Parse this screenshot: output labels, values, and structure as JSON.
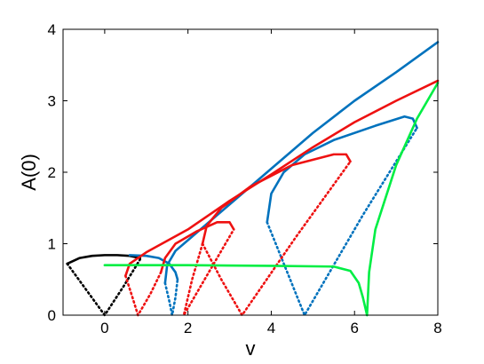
{
  "chart_data": {
    "type": "line",
    "xlabel": "v",
    "ylabel": "A(0)",
    "xlim": [
      -1,
      8
    ],
    "xticks": [
      0,
      2,
      4,
      6,
      8
    ],
    "ylim": [
      0,
      4
    ],
    "yticks": [
      0,
      1,
      2,
      3,
      4
    ],
    "series": [
      {
        "color": "#000000",
        "dotted": false,
        "x": [
          -0.9,
          -0.6,
          -0.3,
          0,
          0.3,
          0.6,
          0.85
        ],
        "values": [
          0.72,
          0.8,
          0.83,
          0.84,
          0.84,
          0.83,
          0.8
        ]
      },
      {
        "color": "#000000",
        "dotted": true,
        "x": [
          -0.9,
          -0.45,
          0,
          0.45,
          0.85
        ],
        "values": [
          0.72,
          0.36,
          0,
          0.4,
          0.78
        ]
      },
      {
        "color": "#0072bd",
        "dotted": false,
        "x": [
          0.6,
          1.0,
          1.3,
          1.55,
          1.7,
          1.75
        ],
        "values": [
          0.84,
          0.83,
          0.8,
          0.72,
          0.6,
          0.5
        ]
      },
      {
        "color": "#0072bd",
        "dotted": true,
        "x": [
          1.45,
          1.55,
          1.62,
          1.7,
          1.75
        ],
        "values": [
          0.45,
          0.2,
          0,
          0.25,
          0.5
        ]
      },
      {
        "color": "#0072bd",
        "dotted": false,
        "x": [
          1.45,
          1.5,
          1.7,
          2.0,
          3,
          4,
          5,
          6,
          7,
          8
        ],
        "values": [
          0.45,
          0.7,
          0.9,
          1.05,
          1.55,
          2.05,
          2.55,
          3.0,
          3.4,
          3.82
        ]
      },
      {
        "color": "#0072bd",
        "dotted": false,
        "x": [
          3.9,
          4.0,
          4.3,
          4.8,
          5.5,
          6.5,
          7.2,
          7.4,
          7.5
        ],
        "values": [
          1.3,
          1.7,
          2.0,
          2.25,
          2.45,
          2.65,
          2.78,
          2.75,
          2.62
        ]
      },
      {
        "color": "#0072bd",
        "dotted": true,
        "x": [
          3.9,
          4.35,
          4.8,
          6.2,
          7.5
        ],
        "values": [
          1.3,
          0.65,
          0,
          1.4,
          2.62
        ]
      },
      {
        "color": "#ee1111",
        "dotted": false,
        "x": [
          0.5,
          0.6,
          1,
          2,
          3,
          4,
          5,
          6,
          7,
          8
        ],
        "values": [
          0.55,
          0.72,
          0.88,
          1.2,
          1.6,
          1.97,
          2.35,
          2.7,
          3.0,
          3.28
        ]
      },
      {
        "color": "#ee1111",
        "dotted": true,
        "x": [
          0.5,
          0.65,
          0.8,
          1.1,
          1.35
        ],
        "values": [
          0.55,
          0.28,
          0,
          0.3,
          0.6
        ]
      },
      {
        "color": "#ee1111",
        "dotted": false,
        "x": [
          1.35,
          1.45,
          1.7,
          2.2,
          2.7,
          3.0,
          3.1
        ],
        "values": [
          0.6,
          0.8,
          1.0,
          1.17,
          1.3,
          1.3,
          1.2
        ]
      },
      {
        "color": "#ee1111",
        "dotted": true,
        "x": [
          2.35,
          2.1,
          1.9,
          2.5,
          3.1
        ],
        "values": [
          1.0,
          0.5,
          0,
          0.6,
          1.2
        ]
      },
      {
        "color": "#ee1111",
        "dotted": false,
        "x": [
          2.35,
          2.45,
          2.8,
          3.5,
          4.5,
          5.5,
          5.8,
          5.9
        ],
        "values": [
          1.0,
          1.25,
          1.5,
          1.8,
          2.1,
          2.25,
          2.25,
          2.15
        ]
      },
      {
        "color": "#ee1111",
        "dotted": true,
        "x": [
          2.35,
          2.8,
          3.3,
          4.6,
          5.9
        ],
        "values": [
          1.0,
          0.5,
          0,
          1.1,
          2.15
        ]
      },
      {
        "color": "#00ee44",
        "dotted": false,
        "x": [
          0,
          2,
          4,
          5.5,
          5.9,
          6.1,
          6.2,
          6.3
        ],
        "values": [
          0.7,
          0.7,
          0.69,
          0.68,
          0.62,
          0.45,
          0.25,
          0
        ]
      },
      {
        "color": "#00ee44",
        "dotted": false,
        "x": [
          6.3,
          6.35,
          6.5,
          7,
          7.5,
          8
        ],
        "values": [
          0,
          0.6,
          1.2,
          2.1,
          2.75,
          3.25
        ]
      }
    ]
  }
}
